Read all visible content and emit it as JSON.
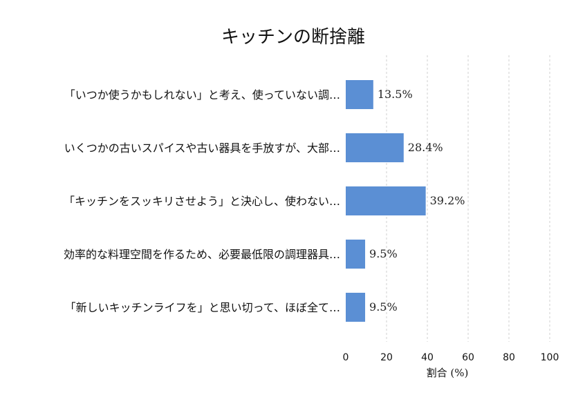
{
  "chart_data": {
    "type": "bar",
    "orientation": "horizontal",
    "title": "キッチンの断捨離",
    "xlabel": "割合 (%)",
    "ylabel": "",
    "xlim": [
      0,
      100
    ],
    "xticks": [
      "0",
      "20",
      "40",
      "60",
      "80",
      "100"
    ],
    "grid": "x-dashed",
    "categories": [
      "「いつか使うかもしれない」と考え、使っていない調…",
      "いくつかの古いスパイスや古い器具を手放すが、大部…",
      "「キッチンをスッキリさせよう」と決心し、使わない…",
      "効率的な料理空間を作るため、必要最低限の調理器具…",
      "「新しいキッチンライフを」と思い切って、ほぼ全て…"
    ],
    "values": [
      13.5,
      28.4,
      39.2,
      9.5,
      9.5
    ],
    "value_labels": [
      "13.5%",
      "28.4%",
      "39.2%",
      "9.5%",
      "9.5%"
    ],
    "bar_color": "#5b8fd4"
  }
}
